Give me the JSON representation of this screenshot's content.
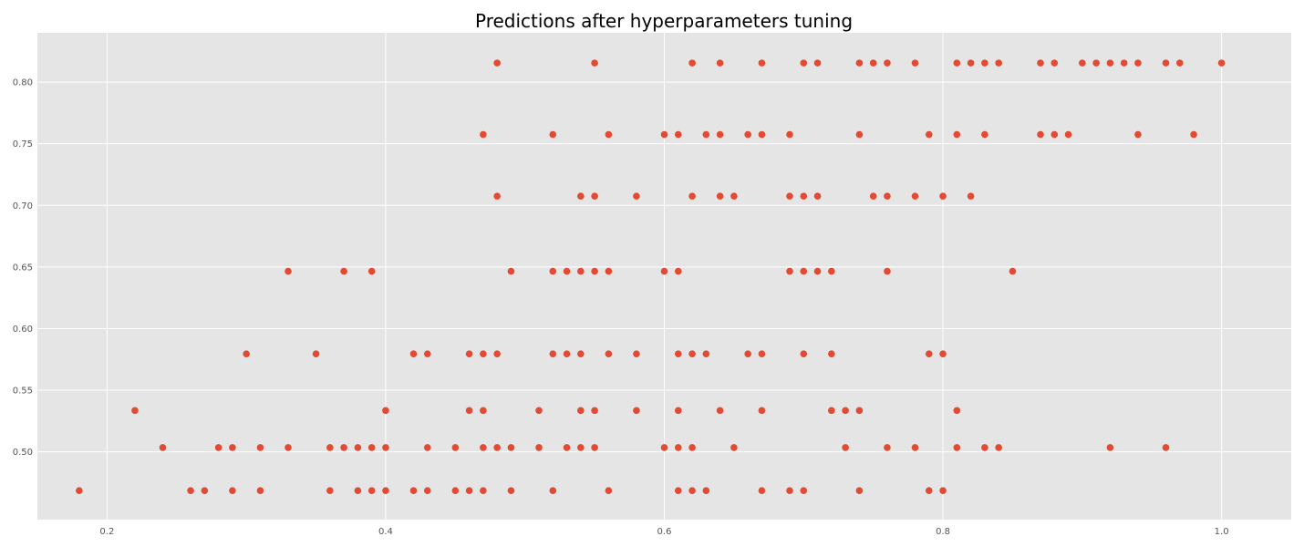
{
  "chart_data": {
    "type": "scatter",
    "title": "Predictions after hyperparameters tuning",
    "xlabel": "",
    "ylabel": "",
    "xlim": [
      0.15,
      1.05
    ],
    "ylim": [
      0.445,
      0.84
    ],
    "x_ticks": [
      0.2,
      0.4,
      0.6,
      0.8,
      1.0
    ],
    "y_ticks": [
      0.5,
      0.55,
      0.6,
      0.65,
      0.7,
      0.75,
      0.8
    ],
    "x_tick_labels": [
      "0.2",
      "0.4",
      "0.6",
      "0.8",
      "1.0"
    ],
    "y_tick_labels": [
      "0.50",
      "0.55",
      "0.60",
      "0.65",
      "0.70",
      "0.75",
      "0.80"
    ],
    "grid": true,
    "style": "ggplot",
    "colors": {
      "background": "#e5e5e5",
      "grid": "#ffffff",
      "marker": "#e24a33",
      "tick_text": "#555555"
    },
    "series": [
      {
        "points": [
          {
            "x": 0.18,
            "y": 0.4685
          },
          {
            "x": 0.26,
            "y": 0.4685
          },
          {
            "x": 0.27,
            "y": 0.4685
          },
          {
            "x": 0.29,
            "y": 0.4685
          },
          {
            "x": 0.31,
            "y": 0.4685
          },
          {
            "x": 0.36,
            "y": 0.4685
          },
          {
            "x": 0.38,
            "y": 0.4685
          },
          {
            "x": 0.39,
            "y": 0.4685
          },
          {
            "x": 0.4,
            "y": 0.4685
          },
          {
            "x": 0.42,
            "y": 0.4685
          },
          {
            "x": 0.43,
            "y": 0.4685
          },
          {
            "x": 0.45,
            "y": 0.4685
          },
          {
            "x": 0.46,
            "y": 0.4685
          },
          {
            "x": 0.47,
            "y": 0.4685
          },
          {
            "x": 0.49,
            "y": 0.4685
          },
          {
            "x": 0.52,
            "y": 0.4685
          },
          {
            "x": 0.56,
            "y": 0.4685
          },
          {
            "x": 0.61,
            "y": 0.4685
          },
          {
            "x": 0.62,
            "y": 0.4685
          },
          {
            "x": 0.63,
            "y": 0.4685
          },
          {
            "x": 0.67,
            "y": 0.4685
          },
          {
            "x": 0.69,
            "y": 0.4685
          },
          {
            "x": 0.7,
            "y": 0.4685
          },
          {
            "x": 0.74,
            "y": 0.4685
          },
          {
            "x": 0.79,
            "y": 0.4685
          },
          {
            "x": 0.8,
            "y": 0.4685
          },
          {
            "x": 0.24,
            "y": 0.5035
          },
          {
            "x": 0.28,
            "y": 0.5035
          },
          {
            "x": 0.29,
            "y": 0.5035
          },
          {
            "x": 0.31,
            "y": 0.5035
          },
          {
            "x": 0.33,
            "y": 0.5035
          },
          {
            "x": 0.36,
            "y": 0.5035
          },
          {
            "x": 0.37,
            "y": 0.5035
          },
          {
            "x": 0.38,
            "y": 0.5035
          },
          {
            "x": 0.39,
            "y": 0.5035
          },
          {
            "x": 0.4,
            "y": 0.5035
          },
          {
            "x": 0.43,
            "y": 0.5035
          },
          {
            "x": 0.45,
            "y": 0.5035
          },
          {
            "x": 0.47,
            "y": 0.5035
          },
          {
            "x": 0.48,
            "y": 0.5035
          },
          {
            "x": 0.49,
            "y": 0.5035
          },
          {
            "x": 0.51,
            "y": 0.5035
          },
          {
            "x": 0.53,
            "y": 0.5035
          },
          {
            "x": 0.54,
            "y": 0.5035
          },
          {
            "x": 0.55,
            "y": 0.5035
          },
          {
            "x": 0.6,
            "y": 0.5035
          },
          {
            "x": 0.61,
            "y": 0.5035
          },
          {
            "x": 0.62,
            "y": 0.5035
          },
          {
            "x": 0.65,
            "y": 0.5035
          },
          {
            "x": 0.73,
            "y": 0.5035
          },
          {
            "x": 0.76,
            "y": 0.5035
          },
          {
            "x": 0.78,
            "y": 0.5035
          },
          {
            "x": 0.81,
            "y": 0.5035
          },
          {
            "x": 0.83,
            "y": 0.5035
          },
          {
            "x": 0.84,
            "y": 0.5035
          },
          {
            "x": 0.92,
            "y": 0.5035
          },
          {
            "x": 0.96,
            "y": 0.5035
          },
          {
            "x": 0.22,
            "y": 0.5335
          },
          {
            "x": 0.4,
            "y": 0.5335
          },
          {
            "x": 0.46,
            "y": 0.5335
          },
          {
            "x": 0.47,
            "y": 0.5335
          },
          {
            "x": 0.51,
            "y": 0.5335
          },
          {
            "x": 0.54,
            "y": 0.5335
          },
          {
            "x": 0.55,
            "y": 0.5335
          },
          {
            "x": 0.58,
            "y": 0.5335
          },
          {
            "x": 0.61,
            "y": 0.5335
          },
          {
            "x": 0.64,
            "y": 0.5335
          },
          {
            "x": 0.67,
            "y": 0.5335
          },
          {
            "x": 0.72,
            "y": 0.5335
          },
          {
            "x": 0.73,
            "y": 0.5335
          },
          {
            "x": 0.74,
            "y": 0.5335
          },
          {
            "x": 0.81,
            "y": 0.5335
          },
          {
            "x": 0.3,
            "y": 0.5795
          },
          {
            "x": 0.35,
            "y": 0.5795
          },
          {
            "x": 0.42,
            "y": 0.5795
          },
          {
            "x": 0.43,
            "y": 0.5795
          },
          {
            "x": 0.46,
            "y": 0.5795
          },
          {
            "x": 0.47,
            "y": 0.5795
          },
          {
            "x": 0.48,
            "y": 0.5795
          },
          {
            "x": 0.52,
            "y": 0.5795
          },
          {
            "x": 0.53,
            "y": 0.5795
          },
          {
            "x": 0.54,
            "y": 0.5795
          },
          {
            "x": 0.56,
            "y": 0.5795
          },
          {
            "x": 0.58,
            "y": 0.5795
          },
          {
            "x": 0.61,
            "y": 0.5795
          },
          {
            "x": 0.62,
            "y": 0.5795
          },
          {
            "x": 0.63,
            "y": 0.5795
          },
          {
            "x": 0.66,
            "y": 0.5795
          },
          {
            "x": 0.67,
            "y": 0.5795
          },
          {
            "x": 0.7,
            "y": 0.5795
          },
          {
            "x": 0.72,
            "y": 0.5795
          },
          {
            "x": 0.79,
            "y": 0.5795
          },
          {
            "x": 0.8,
            "y": 0.5795
          },
          {
            "x": 0.33,
            "y": 0.6465
          },
          {
            "x": 0.37,
            "y": 0.6465
          },
          {
            "x": 0.39,
            "y": 0.6465
          },
          {
            "x": 0.49,
            "y": 0.6465
          },
          {
            "x": 0.52,
            "y": 0.6465
          },
          {
            "x": 0.53,
            "y": 0.6465
          },
          {
            "x": 0.54,
            "y": 0.6465
          },
          {
            "x": 0.55,
            "y": 0.6465
          },
          {
            "x": 0.56,
            "y": 0.6465
          },
          {
            "x": 0.6,
            "y": 0.6465
          },
          {
            "x": 0.61,
            "y": 0.6465
          },
          {
            "x": 0.69,
            "y": 0.6465
          },
          {
            "x": 0.7,
            "y": 0.6465
          },
          {
            "x": 0.71,
            "y": 0.6465
          },
          {
            "x": 0.72,
            "y": 0.6465
          },
          {
            "x": 0.76,
            "y": 0.6465
          },
          {
            "x": 0.85,
            "y": 0.6465
          },
          {
            "x": 0.48,
            "y": 0.7075
          },
          {
            "x": 0.54,
            "y": 0.7075
          },
          {
            "x": 0.55,
            "y": 0.7075
          },
          {
            "x": 0.58,
            "y": 0.7075
          },
          {
            "x": 0.62,
            "y": 0.7075
          },
          {
            "x": 0.64,
            "y": 0.7075
          },
          {
            "x": 0.65,
            "y": 0.7075
          },
          {
            "x": 0.69,
            "y": 0.7075
          },
          {
            "x": 0.7,
            "y": 0.7075
          },
          {
            "x": 0.71,
            "y": 0.7075
          },
          {
            "x": 0.75,
            "y": 0.7075
          },
          {
            "x": 0.76,
            "y": 0.7075
          },
          {
            "x": 0.78,
            "y": 0.7075
          },
          {
            "x": 0.8,
            "y": 0.7075
          },
          {
            "x": 0.82,
            "y": 0.7075
          },
          {
            "x": 0.47,
            "y": 0.7575
          },
          {
            "x": 0.52,
            "y": 0.7575
          },
          {
            "x": 0.56,
            "y": 0.7575
          },
          {
            "x": 0.6,
            "y": 0.7575
          },
          {
            "x": 0.61,
            "y": 0.7575
          },
          {
            "x": 0.63,
            "y": 0.7575
          },
          {
            "x": 0.64,
            "y": 0.7575
          },
          {
            "x": 0.66,
            "y": 0.7575
          },
          {
            "x": 0.67,
            "y": 0.7575
          },
          {
            "x": 0.69,
            "y": 0.7575
          },
          {
            "x": 0.74,
            "y": 0.7575
          },
          {
            "x": 0.79,
            "y": 0.7575
          },
          {
            "x": 0.81,
            "y": 0.7575
          },
          {
            "x": 0.83,
            "y": 0.7575
          },
          {
            "x": 0.87,
            "y": 0.7575
          },
          {
            "x": 0.88,
            "y": 0.7575
          },
          {
            "x": 0.89,
            "y": 0.7575
          },
          {
            "x": 0.94,
            "y": 0.7575
          },
          {
            "x": 0.98,
            "y": 0.7575
          },
          {
            "x": 0.48,
            "y": 0.8155
          },
          {
            "x": 0.55,
            "y": 0.8155
          },
          {
            "x": 0.62,
            "y": 0.8155
          },
          {
            "x": 0.64,
            "y": 0.8155
          },
          {
            "x": 0.67,
            "y": 0.8155
          },
          {
            "x": 0.7,
            "y": 0.8155
          },
          {
            "x": 0.71,
            "y": 0.8155
          },
          {
            "x": 0.74,
            "y": 0.8155
          },
          {
            "x": 0.75,
            "y": 0.8155
          },
          {
            "x": 0.76,
            "y": 0.8155
          },
          {
            "x": 0.78,
            "y": 0.8155
          },
          {
            "x": 0.81,
            "y": 0.8155
          },
          {
            "x": 0.82,
            "y": 0.8155
          },
          {
            "x": 0.83,
            "y": 0.8155
          },
          {
            "x": 0.84,
            "y": 0.8155
          },
          {
            "x": 0.87,
            "y": 0.8155
          },
          {
            "x": 0.88,
            "y": 0.8155
          },
          {
            "x": 0.9,
            "y": 0.8155
          },
          {
            "x": 0.91,
            "y": 0.8155
          },
          {
            "x": 0.92,
            "y": 0.8155
          },
          {
            "x": 0.93,
            "y": 0.8155
          },
          {
            "x": 0.94,
            "y": 0.8155
          },
          {
            "x": 0.96,
            "y": 0.8155
          },
          {
            "x": 0.97,
            "y": 0.8155
          },
          {
            "x": 1.0,
            "y": 0.8155
          }
        ]
      }
    ]
  }
}
